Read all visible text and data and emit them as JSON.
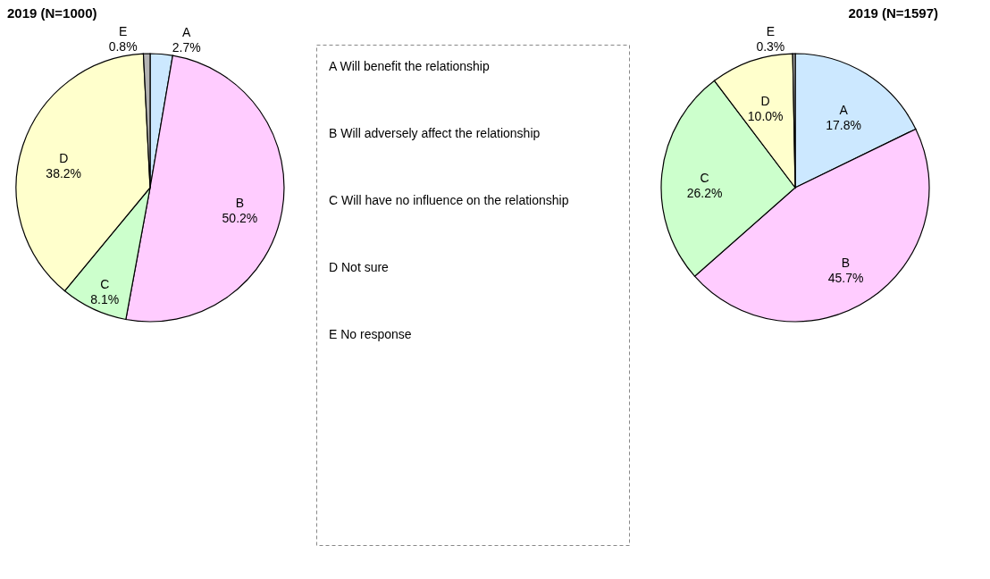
{
  "chart_data": [
    {
      "type": "pie",
      "title": "2019 (N=1000)",
      "categories": [
        "A",
        "B",
        "C",
        "D",
        "E"
      ],
      "values": [
        2.7,
        50.2,
        8.1,
        38.2,
        0.8
      ],
      "value_labels": [
        "2.7%",
        "50.2%",
        "8.1%",
        "38.2%",
        "0.8%"
      ],
      "colors": [
        "#cce8ff",
        "#ffccff",
        "#ccffcc",
        "#ffffcc",
        "#b3b3b3"
      ],
      "legend": false
    },
    {
      "type": "other",
      "annotations": [
        "A    Will benefit the relationship",
        "B    Will adversely affect the relationship",
        "C    Will have no influence on the relationship",
        "D    Not sure",
        "E    No response"
      ]
    },
    {
      "type": "pie",
      "title": "2019 (N=1597)",
      "categories": [
        "A",
        "B",
        "C",
        "D",
        "E"
      ],
      "values": [
        17.8,
        45.7,
        26.2,
        10.0,
        0.3
      ],
      "value_labels": [
        "17.8%",
        "45.7%",
        "26.2%",
        "10.0%",
        "0.3%"
      ],
      "colors": [
        "#cce8ff",
        "#ffccff",
        "#ccffcc",
        "#ffffcc",
        "#b3b3b3"
      ],
      "legend": false
    }
  ]
}
